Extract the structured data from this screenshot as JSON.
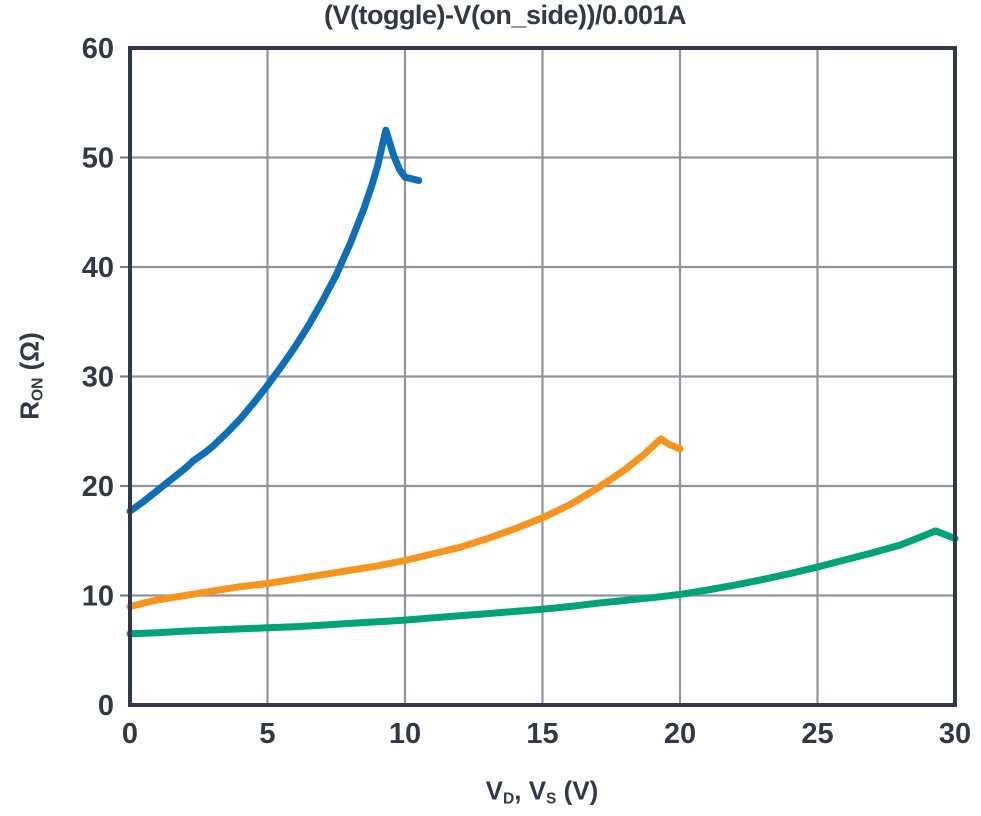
{
  "chart_data": {
    "type": "line",
    "title": "(V(toggle)-V(on_side))/0.001A",
    "xlabel": "V_D, V_S (V)",
    "ylabel": "R_ON (Ω)",
    "xlabel_parts": [
      {
        "t": "V"
      },
      {
        "t": "D",
        "sub": true
      },
      {
        "t": ", V"
      },
      {
        "t": "S",
        "sub": true
      },
      {
        "t": " (V)"
      }
    ],
    "ylabel_parts": [
      {
        "t": "R"
      },
      {
        "t": "ON",
        "sub": true
      },
      {
        "t": " (Ω)"
      }
    ],
    "xlim": [
      0,
      30
    ],
    "ylim": [
      0,
      60
    ],
    "xticks": [
      0,
      5,
      10,
      15,
      20,
      25,
      30
    ],
    "yticks": [
      0,
      10,
      20,
      30,
      40,
      50,
      60
    ],
    "grid": true,
    "legend": "none",
    "colors": {
      "background": "#ffffff",
      "axis_frame": "#323848",
      "gridline": "#8f949d",
      "tick_stub": "#7a8089",
      "text": "#323848"
    },
    "series": [
      {
        "name": "blue-curve",
        "color": "#0E6EB8",
        "points": [
          [
            0,
            17.7
          ],
          [
            0.5,
            18.6
          ],
          [
            1,
            19.6
          ],
          [
            1.5,
            20.6
          ],
          [
            2,
            21.6
          ],
          [
            2.3,
            22.3
          ],
          [
            2.7,
            23.0
          ],
          [
            3,
            23.6
          ],
          [
            3.5,
            24.8
          ],
          [
            4,
            26.1
          ],
          [
            4.5,
            27.6
          ],
          [
            5,
            29.2
          ],
          [
            5.5,
            30.9
          ],
          [
            6,
            32.7
          ],
          [
            6.5,
            34.7
          ],
          [
            7,
            36.9
          ],
          [
            7.5,
            39.3
          ],
          [
            8,
            42.1
          ],
          [
            8.5,
            45.3
          ],
          [
            8.8,
            47.5
          ],
          [
            9,
            49.2
          ],
          [
            9.3,
            52.5
          ],
          [
            9.45,
            51.3
          ],
          [
            9.6,
            50.1
          ],
          [
            9.8,
            48.9
          ],
          [
            10,
            48.2
          ],
          [
            10.5,
            47.9
          ]
        ]
      },
      {
        "name": "orange-curve",
        "color": "#F7941E",
        "points": [
          [
            0,
            9.0
          ],
          [
            0.5,
            9.3
          ],
          [
            1,
            9.6
          ],
          [
            1.5,
            9.8
          ],
          [
            2,
            10.0
          ],
          [
            3,
            10.4
          ],
          [
            4,
            10.8
          ],
          [
            5,
            11.1
          ],
          [
            6,
            11.5
          ],
          [
            7,
            11.9
          ],
          [
            8,
            12.3
          ],
          [
            9,
            12.7
          ],
          [
            10,
            13.2
          ],
          [
            11,
            13.8
          ],
          [
            12,
            14.4
          ],
          [
            13,
            15.2
          ],
          [
            14,
            16.1
          ],
          [
            15,
            17.1
          ],
          [
            16,
            18.3
          ],
          [
            17,
            19.8
          ],
          [
            18,
            21.5
          ],
          [
            18.7,
            22.9
          ],
          [
            19.3,
            24.3
          ],
          [
            19.6,
            23.8
          ],
          [
            20,
            23.4
          ]
        ]
      },
      {
        "name": "green-curve",
        "color": "#00A478",
        "points": [
          [
            0,
            6.5
          ],
          [
            1,
            6.6
          ],
          [
            2,
            6.75
          ],
          [
            3,
            6.85
          ],
          [
            4,
            6.95
          ],
          [
            5,
            7.05
          ],
          [
            6,
            7.15
          ],
          [
            7,
            7.3
          ],
          [
            8,
            7.45
          ],
          [
            9,
            7.6
          ],
          [
            10,
            7.75
          ],
          [
            11,
            7.95
          ],
          [
            12,
            8.15
          ],
          [
            13,
            8.35
          ],
          [
            14,
            8.55
          ],
          [
            15,
            8.75
          ],
          [
            16,
            9.0
          ],
          [
            17,
            9.3
          ],
          [
            18,
            9.55
          ],
          [
            19,
            9.8
          ],
          [
            20,
            10.1
          ],
          [
            21,
            10.5
          ],
          [
            22,
            10.95
          ],
          [
            23,
            11.45
          ],
          [
            24,
            12.0
          ],
          [
            25,
            12.6
          ],
          [
            26,
            13.25
          ],
          [
            27,
            13.9
          ],
          [
            28,
            14.6
          ],
          [
            28.7,
            15.3
          ],
          [
            29.3,
            15.9
          ],
          [
            30,
            15.2
          ]
        ]
      }
    ]
  }
}
